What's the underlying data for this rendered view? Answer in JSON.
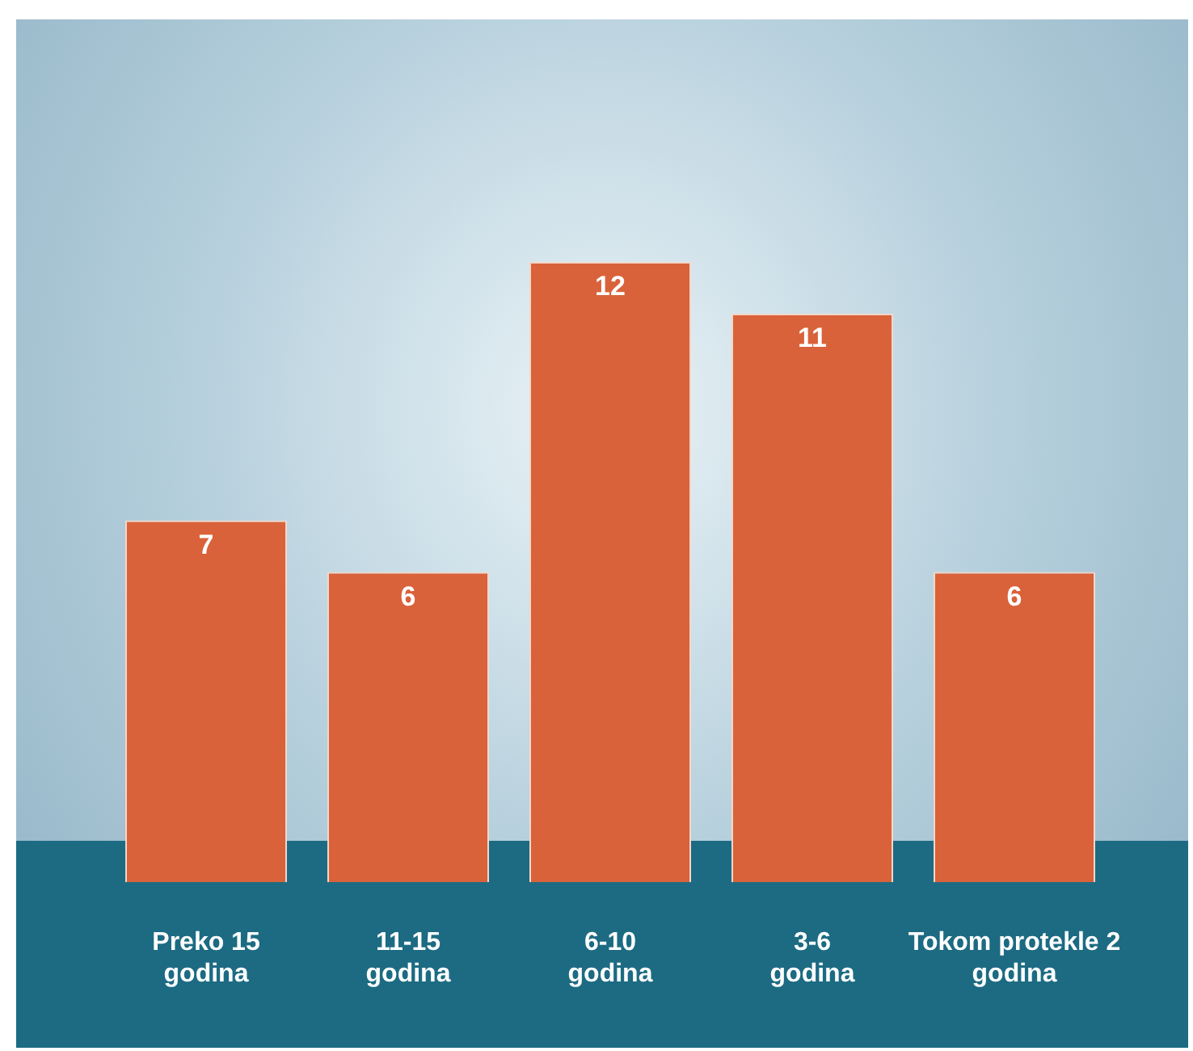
{
  "chart_data": {
    "type": "bar",
    "categories": [
      "Preko 15 godina",
      "11-15 godina",
      "6-10 godina",
      "3-6 godina",
      "Tokom protekle 2 godina"
    ],
    "values": [
      7,
      6,
      12,
      11,
      6
    ],
    "color": "#d9623a",
    "data_labels": true,
    "grid": false,
    "legend": false
  }
}
